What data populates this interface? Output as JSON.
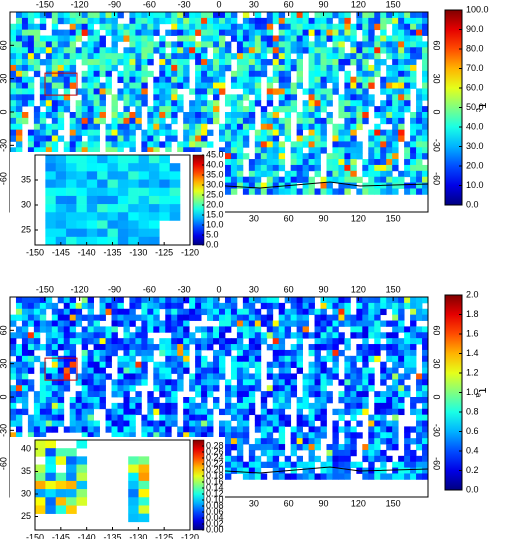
{
  "panels": [
    {
      "lonlim": [
        -180,
        180
      ],
      "latlim": [
        -90,
        90
      ],
      "lon_ticks": [
        -150,
        -120,
        -90,
        -60,
        -30,
        0,
        30,
        60,
        90,
        120,
        150
      ],
      "lat_ticks": [
        60,
        30,
        0,
        -30,
        -60
      ],
      "colorbar": {
        "label": {
          "symbol": "τ",
          "subscript": "c"
        },
        "lim": [
          0,
          100
        ],
        "ticks": [
          {
            "value": 0,
            "label": "0.0"
          },
          {
            "value": 10,
            "label": "10.0"
          },
          {
            "value": 20,
            "label": "20.0"
          },
          {
            "value": 30,
            "label": "30.0"
          },
          {
            "value": 40,
            "label": "40.0"
          },
          {
            "value": 50,
            "label": "50.0"
          },
          {
            "value": 60,
            "label": "60.0"
          },
          {
            "value": 70,
            "label": "70.0"
          },
          {
            "value": 80,
            "label": "80.0"
          },
          {
            "value": 90,
            "label": "90.0"
          },
          {
            "value": 100,
            "label": "100.0"
          }
        ]
      },
      "inset": {
        "lonlim": [
          -150,
          -120
        ],
        "latlim": [
          22,
          40
        ],
        "lon_ticks": [
          -150,
          -145,
          -140,
          -135,
          -130,
          -125,
          -120
        ],
        "lat_ticks": [
          25,
          30,
          35
        ],
        "colorbar": {
          "lim": [
            0,
            45
          ],
          "ticks": [
            {
              "value": 0,
              "label": "0.0"
            },
            {
              "value": 5,
              "label": "5.0"
            },
            {
              "value": 10,
              "label": "10.0"
            },
            {
              "value": 15,
              "label": "15.0"
            },
            {
              "value": 20,
              "label": "20.0"
            },
            {
              "value": 25,
              "label": "25.0"
            },
            {
              "value": 30,
              "label": "30.0"
            },
            {
              "value": 35,
              "label": "35.0"
            },
            {
              "value": 40,
              "label": "40.0"
            },
            {
              "value": 45,
              "label": "45.0"
            }
          ]
        }
      }
    },
    {
      "lonlim": [
        -180,
        180
      ],
      "latlim": [
        -90,
        90
      ],
      "lon_ticks": [
        -150,
        -120,
        -90,
        -60,
        -30,
        0,
        30,
        60,
        90,
        120,
        150
      ],
      "lat_ticks": [
        60,
        30,
        0,
        -30,
        -60
      ],
      "colorbar": {
        "label": {
          "symbol": "τ",
          "subscript": "a"
        },
        "lim": [
          0,
          2
        ],
        "ticks": [
          {
            "value": 0,
            "label": "0.0"
          },
          {
            "value": 0.2,
            "label": "0.2"
          },
          {
            "value": 0.4,
            "label": "0.4"
          },
          {
            "value": 0.6,
            "label": "0.6"
          },
          {
            "value": 0.8,
            "label": "0.8"
          },
          {
            "value": 1,
            "label": "1.0"
          },
          {
            "value": 1.2,
            "label": "1.2"
          },
          {
            "value": 1.4,
            "label": "1.4"
          },
          {
            "value": 1.6,
            "label": "1.6"
          },
          {
            "value": 1.8,
            "label": "1.8"
          },
          {
            "value": 2,
            "label": "2.0"
          }
        ]
      },
      "inset": {
        "lonlim": [
          -150,
          -120
        ],
        "latlim": [
          22,
          42
        ],
        "lon_ticks": [
          -150,
          -145,
          -140,
          -135,
          -130,
          -125,
          -120
        ],
        "lat_ticks": [
          25,
          30,
          35,
          40
        ],
        "colorbar": {
          "lim": [
            0,
            0.3
          ],
          "ticks": [
            {
              "value": 0,
              "label": "0.00"
            },
            {
              "value": 0.02,
              "label": "0.02"
            },
            {
              "value": 0.04,
              "label": "0.04"
            },
            {
              "value": 0.06,
              "label": "0.06"
            },
            {
              "value": 0.08,
              "label": "0.08"
            },
            {
              "value": 0.1,
              "label": "0.10"
            },
            {
              "value": 0.12,
              "label": "0.12"
            },
            {
              "value": 0.14,
              "label": "0.14"
            },
            {
              "value": 0.16,
              "label": "0.16"
            },
            {
              "value": 0.18,
              "label": "0.18"
            },
            {
              "value": 0.2,
              "label": "0.20"
            },
            {
              "value": 0.22,
              "label": "0.22"
            },
            {
              "value": 0.24,
              "label": "0.24"
            },
            {
              "value": 0.26,
              "label": "0.26"
            },
            {
              "value": 0.28,
              "label": "0.28"
            }
          ]
        }
      }
    }
  ]
}
